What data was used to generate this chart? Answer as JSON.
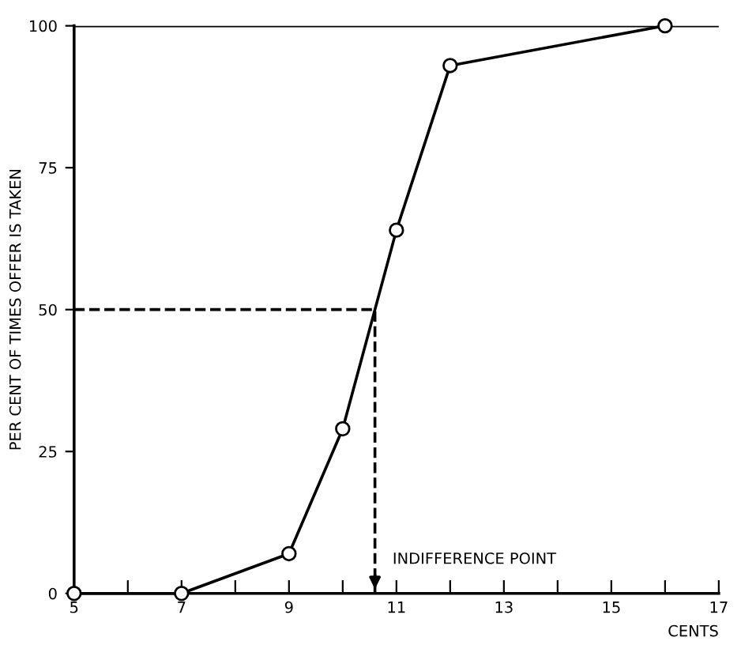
{
  "chart_data": {
    "type": "line",
    "xlabel": "CENTS",
    "ylabel": "PER CENT OF TIMES OFFER IS TAKEN",
    "xlim": [
      5,
      17
    ],
    "ylim": [
      0,
      100
    ],
    "xticks": [
      5,
      {
        "value": 6,
        "label": null
      },
      7,
      {
        "value": 8,
        "label": null
      },
      9,
      {
        "value": 10,
        "label": null
      },
      11,
      {
        "value": 12,
        "label": null
      },
      13,
      {
        "value": 14,
        "label": null
      },
      15,
      {
        "value": 16,
        "label": null
      },
      17
    ],
    "yticks": [
      0,
      25,
      50,
      75,
      100
    ],
    "series": [
      {
        "x": [
          5,
          7,
          9,
          10,
          11,
          12,
          16
        ],
        "values": [
          0,
          0,
          7,
          29,
          64,
          93,
          100
        ],
        "color": "#000000",
        "marker": "circle",
        "line_style": "solid"
      },
      {
        "x": [
          5,
          10.6,
          10.6
        ],
        "values": [
          50,
          50,
          0
        ],
        "color": "#000000",
        "marker": "none",
        "line_style": "dashed"
      }
    ],
    "ref_lines": [
      {
        "axis": "y",
        "value": 100,
        "color": "#000000",
        "line_style": "solid"
      }
    ],
    "annotations": [
      {
        "text": "INDIFFERENCE POINT",
        "x": 10.6,
        "y": 0
      }
    ],
    "grid": false
  }
}
